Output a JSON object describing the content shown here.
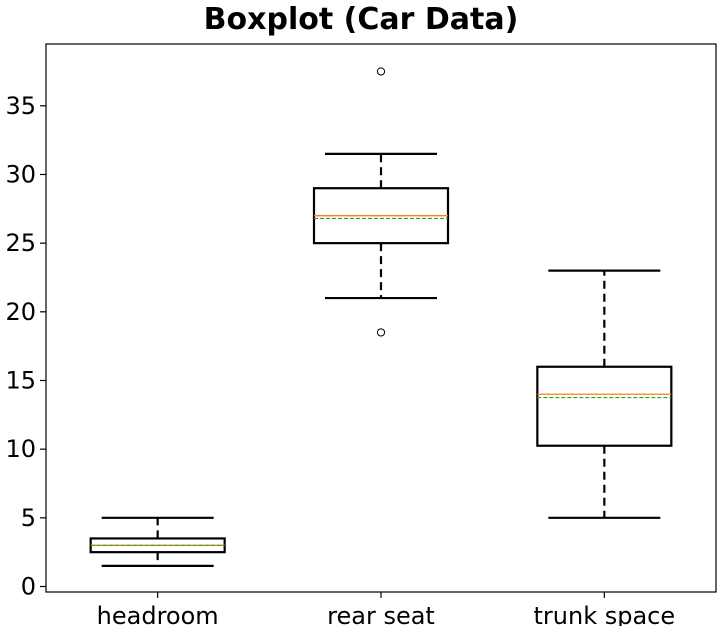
{
  "chart_data": {
    "type": "boxplot",
    "title": "Boxplot (Car Data)",
    "xlabel": "",
    "ylabel": "",
    "categories": [
      "headroom",
      "rear seat",
      "trunk space"
    ],
    "boxes": [
      {
        "category": "headroom",
        "whisker_low": 1.5,
        "q1": 2.5,
        "median": 3.0,
        "mean": 2.99,
        "q3": 3.5,
        "whisker_high": 5.0,
        "outliers": []
      },
      {
        "category": "rear seat",
        "whisker_low": 21.0,
        "q1": 25.0,
        "median": 27.0,
        "mean": 26.8,
        "q3": 29.0,
        "whisker_high": 31.5,
        "outliers": [
          18.5,
          37.5
        ]
      },
      {
        "category": "trunk space",
        "whisker_low": 5.0,
        "q1": 10.25,
        "median": 14.0,
        "mean": 13.76,
        "q3": 16.0,
        "whisker_high": 23.0,
        "outliers": []
      }
    ],
    "ylim": [
      -0.4,
      39.5
    ],
    "yticks": [
      0,
      5,
      10,
      15,
      20,
      25,
      30,
      35
    ],
    "grid": false,
    "legend": "none",
    "colors": {
      "box": "#000000",
      "median": "#ff7f0e",
      "mean": "#2ca02c",
      "outlier": "#000000"
    }
  }
}
